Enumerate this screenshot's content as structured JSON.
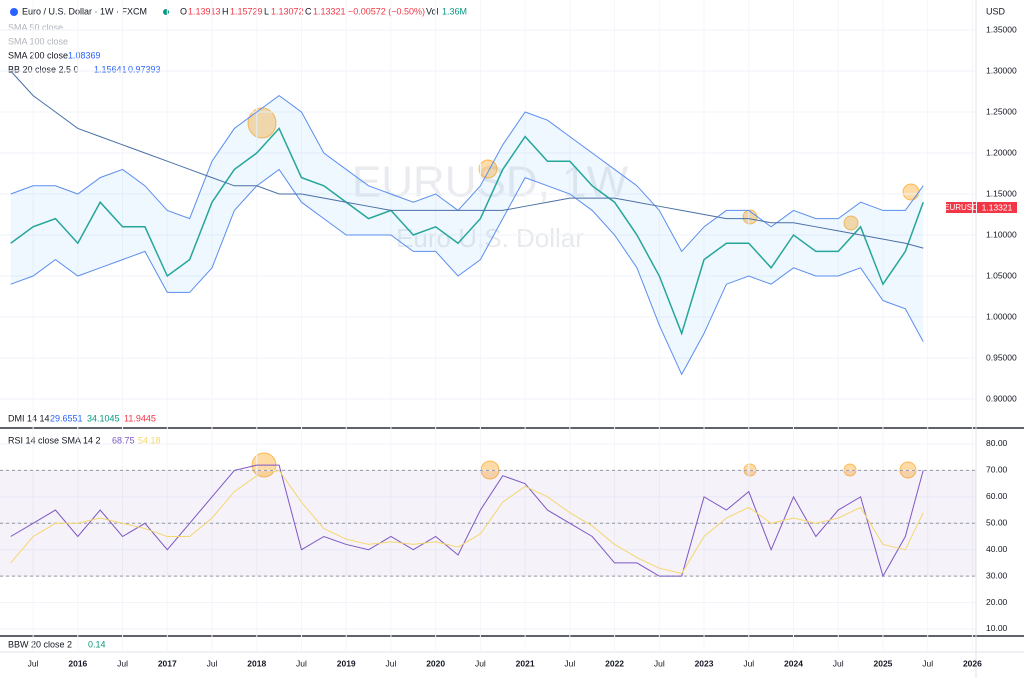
{
  "header": {
    "symbol": "Euro / U.S. Dollar · 1W · FXCM",
    "o_label": "O",
    "o": "1.13913",
    "h_label": "H",
    "h": "1.15729",
    "l_label": "L",
    "l": "1.13072",
    "c_label": "C",
    "c": "1.13321",
    "change": "−0.00572 (−0.50%)",
    "vol_label": "Vol",
    "vol": "1.36M",
    "sma50": "SMA 50 close",
    "sma100": "SMA 100 close",
    "sma200": "SMA 200 close",
    "sma200_value": "1.08369",
    "bb": "BB 20 close 2.5 0",
    "bb_upper": "1.15641",
    "bb_lower": "0.97393",
    "currency": "USD",
    "tag_symbol": "EURUSD",
    "tag_price": "1.13321",
    "watermark": "EURUSD, 1W",
    "watermark_name": "Euro U.S. Dollar",
    "dmi": "DMI 14 14",
    "dmi_v1": "29.6551",
    "dmi_v2": "34.1045",
    "dmi_v3": "11.9445",
    "rsi": "RSI 14 close SMA 14 2",
    "rsi_v1": "68.75",
    "rsi_v2": "54.18",
    "bbw": "BBW 20 close 2",
    "bbw_v": "0.14"
  },
  "chart_data": [
    {
      "type": "line",
      "xlim": [
        2015.13,
        2026.04
      ],
      "ylim": [
        0.8866,
        1.3866
      ],
      "yticks": [
        {
          "value": 1.35,
          "label": "1.35000"
        },
        {
          "value": 1.3,
          "label": "1.30000"
        },
        {
          "value": 1.25,
          "label": "1.25000"
        },
        {
          "value": 1.2,
          "label": "1.20000"
        },
        {
          "value": 1.15,
          "label": "1.15000"
        },
        {
          "value": 1.1,
          "label": "1.10000"
        },
        {
          "value": 1.05,
          "label": "1.05000"
        },
        {
          "value": 1.0,
          "label": "1.00000"
        },
        {
          "value": 0.95,
          "label": "0.95000"
        },
        {
          "value": 0.9,
          "label": "0.90000"
        }
      ],
      "xticks": [
        {
          "value": 2015.5,
          "label": "Jul"
        },
        2016,
        {
          "value": 2016.5,
          "label": "Jul"
        },
        2017,
        {
          "value": 2017.5,
          "label": "Jul"
        },
        2018,
        {
          "value": 2018.5,
          "label": "Jul"
        },
        2019,
        {
          "value": 2019.5,
          "label": "Jul"
        },
        2020,
        {
          "value": 2020.5,
          "label": "Jul"
        },
        2021,
        {
          "value": 2021.5,
          "label": "Jul"
        },
        2022,
        {
          "value": 2022.5,
          "label": "Jul"
        },
        2023,
        {
          "value": 2023.5,
          "label": "Jul"
        },
        2024,
        {
          "value": 2024.5,
          "label": "Jul"
        },
        2025,
        {
          "value": 2025.5,
          "label": "Jul"
        },
        2026
      ],
      "x": [
        2015.25,
        2015.5,
        2015.75,
        2016,
        2016.25,
        2016.5,
        2016.75,
        2017,
        2017.25,
        2017.5,
        2017.75,
        2018,
        2018.25,
        2018.5,
        2018.75,
        2019,
        2019.25,
        2019.5,
        2019.75,
        2020,
        2020.25,
        2020.5,
        2020.75,
        2021,
        2021.25,
        2021.5,
        2021.75,
        2022,
        2022.25,
        2022.5,
        2022.75,
        2023,
        2023.25,
        2023.5,
        2023.75,
        2024,
        2024.25,
        2024.5,
        2024.75,
        2025,
        2025.25,
        2025.45
      ],
      "series": [
        {
          "name": "Close",
          "color": "#26a69a",
          "values": [
            1.09,
            1.11,
            1.12,
            1.09,
            1.14,
            1.11,
            1.11,
            1.05,
            1.07,
            1.14,
            1.18,
            1.2,
            1.23,
            1.17,
            1.16,
            1.14,
            1.12,
            1.13,
            1.1,
            1.11,
            1.09,
            1.12,
            1.18,
            1.22,
            1.19,
            1.19,
            1.16,
            1.14,
            1.1,
            1.05,
            0.98,
            1.07,
            1.09,
            1.09,
            1.06,
            1.1,
            1.08,
            1.08,
            1.11,
            1.04,
            1.08,
            1.14
          ]
        },
        {
          "name": "BB upper",
          "color": "#5b8def",
          "values": [
            1.15,
            1.16,
            1.16,
            1.15,
            1.17,
            1.18,
            1.16,
            1.13,
            1.12,
            1.19,
            1.23,
            1.25,
            1.27,
            1.25,
            1.2,
            1.18,
            1.16,
            1.15,
            1.14,
            1.15,
            1.13,
            1.16,
            1.21,
            1.25,
            1.24,
            1.22,
            1.2,
            1.18,
            1.16,
            1.13,
            1.08,
            1.11,
            1.13,
            1.13,
            1.11,
            1.13,
            1.12,
            1.12,
            1.14,
            1.13,
            1.13,
            1.16
          ]
        },
        {
          "name": "BB lower",
          "color": "#5b8def",
          "values": [
            1.04,
            1.05,
            1.07,
            1.05,
            1.06,
            1.07,
            1.08,
            1.03,
            1.03,
            1.06,
            1.13,
            1.16,
            1.18,
            1.14,
            1.12,
            1.1,
            1.1,
            1.1,
            1.08,
            1.08,
            1.05,
            1.07,
            1.12,
            1.17,
            1.16,
            1.15,
            1.13,
            1.1,
            1.06,
            0.99,
            0.93,
            0.98,
            1.04,
            1.05,
            1.04,
            1.06,
            1.05,
            1.05,
            1.06,
            1.02,
            1.01,
            0.97
          ]
        },
        {
          "name": "SMA 200",
          "color": "#4a6fa5",
          "values": [
            1.3,
            1.27,
            1.25,
            1.23,
            1.22,
            1.21,
            1.2,
            1.19,
            1.18,
            1.17,
            1.16,
            1.16,
            1.15,
            1.15,
            1.145,
            1.14,
            1.135,
            1.13,
            1.13,
            1.13,
            1.13,
            1.13,
            1.13,
            1.135,
            1.14,
            1.145,
            1.145,
            1.145,
            1.14,
            1.135,
            1.13,
            1.125,
            1.12,
            1.12,
            1.115,
            1.115,
            1.11,
            1.105,
            1.1,
            1.095,
            1.09,
            1.084
          ]
        }
      ]
    },
    {
      "type": "line",
      "xlim": [
        2015.13,
        2026.04
      ],
      "ylim": [
        7.35,
        84.54
      ],
      "yticks": [
        {
          "value": 80,
          "label": "80.00"
        },
        {
          "value": 70,
          "label": "70.00"
        },
        {
          "value": 60,
          "label": "60.00"
        },
        {
          "value": 50,
          "label": "50.00"
        },
        {
          "value": 40,
          "label": "40.00"
        },
        {
          "value": 30,
          "label": "30.00"
        },
        {
          "value": 20,
          "label": "20.00"
        },
        {
          "value": 10,
          "label": "10.00"
        }
      ],
      "levels": [
        70,
        50,
        30
      ],
      "x": [
        2015.25,
        2015.5,
        2015.75,
        2016,
        2016.25,
        2016.5,
        2016.75,
        2017,
        2017.25,
        2017.5,
        2017.75,
        2018,
        2018.25,
        2018.5,
        2018.75,
        2019,
        2019.25,
        2019.5,
        2019.75,
        2020,
        2020.25,
        2020.5,
        2020.75,
        2021,
        2021.25,
        2021.5,
        2021.75,
        2022,
        2022.25,
        2022.5,
        2022.75,
        2023,
        2023.25,
        2023.5,
        2023.75,
        2024,
        2024.25,
        2024.5,
        2024.75,
        2025,
        2025.25,
        2025.45
      ],
      "series": [
        {
          "name": "RSI",
          "color": "#7e57c2",
          "values": [
            45,
            50,
            55,
            45,
            55,
            45,
            50,
            40,
            50,
            60,
            70,
            72,
            72,
            40,
            45,
            42,
            40,
            45,
            40,
            45,
            38,
            55,
            68,
            65,
            55,
            50,
            45,
            35,
            35,
            30,
            30,
            60,
            55,
            62,
            40,
            60,
            45,
            55,
            60,
            30,
            45,
            70
          ]
        },
        {
          "name": "RSI SMA",
          "color": "#f5d76e",
          "values": [
            35,
            45,
            50,
            50,
            52,
            50,
            48,
            45,
            45,
            52,
            62,
            68,
            70,
            58,
            48,
            44,
            42,
            43,
            42,
            43,
            41,
            46,
            58,
            64,
            60,
            54,
            49,
            42,
            37,
            33,
            31,
            45,
            52,
            56,
            50,
            52,
            50,
            52,
            56,
            42,
            40,
            54
          ]
        }
      ]
    }
  ]
}
